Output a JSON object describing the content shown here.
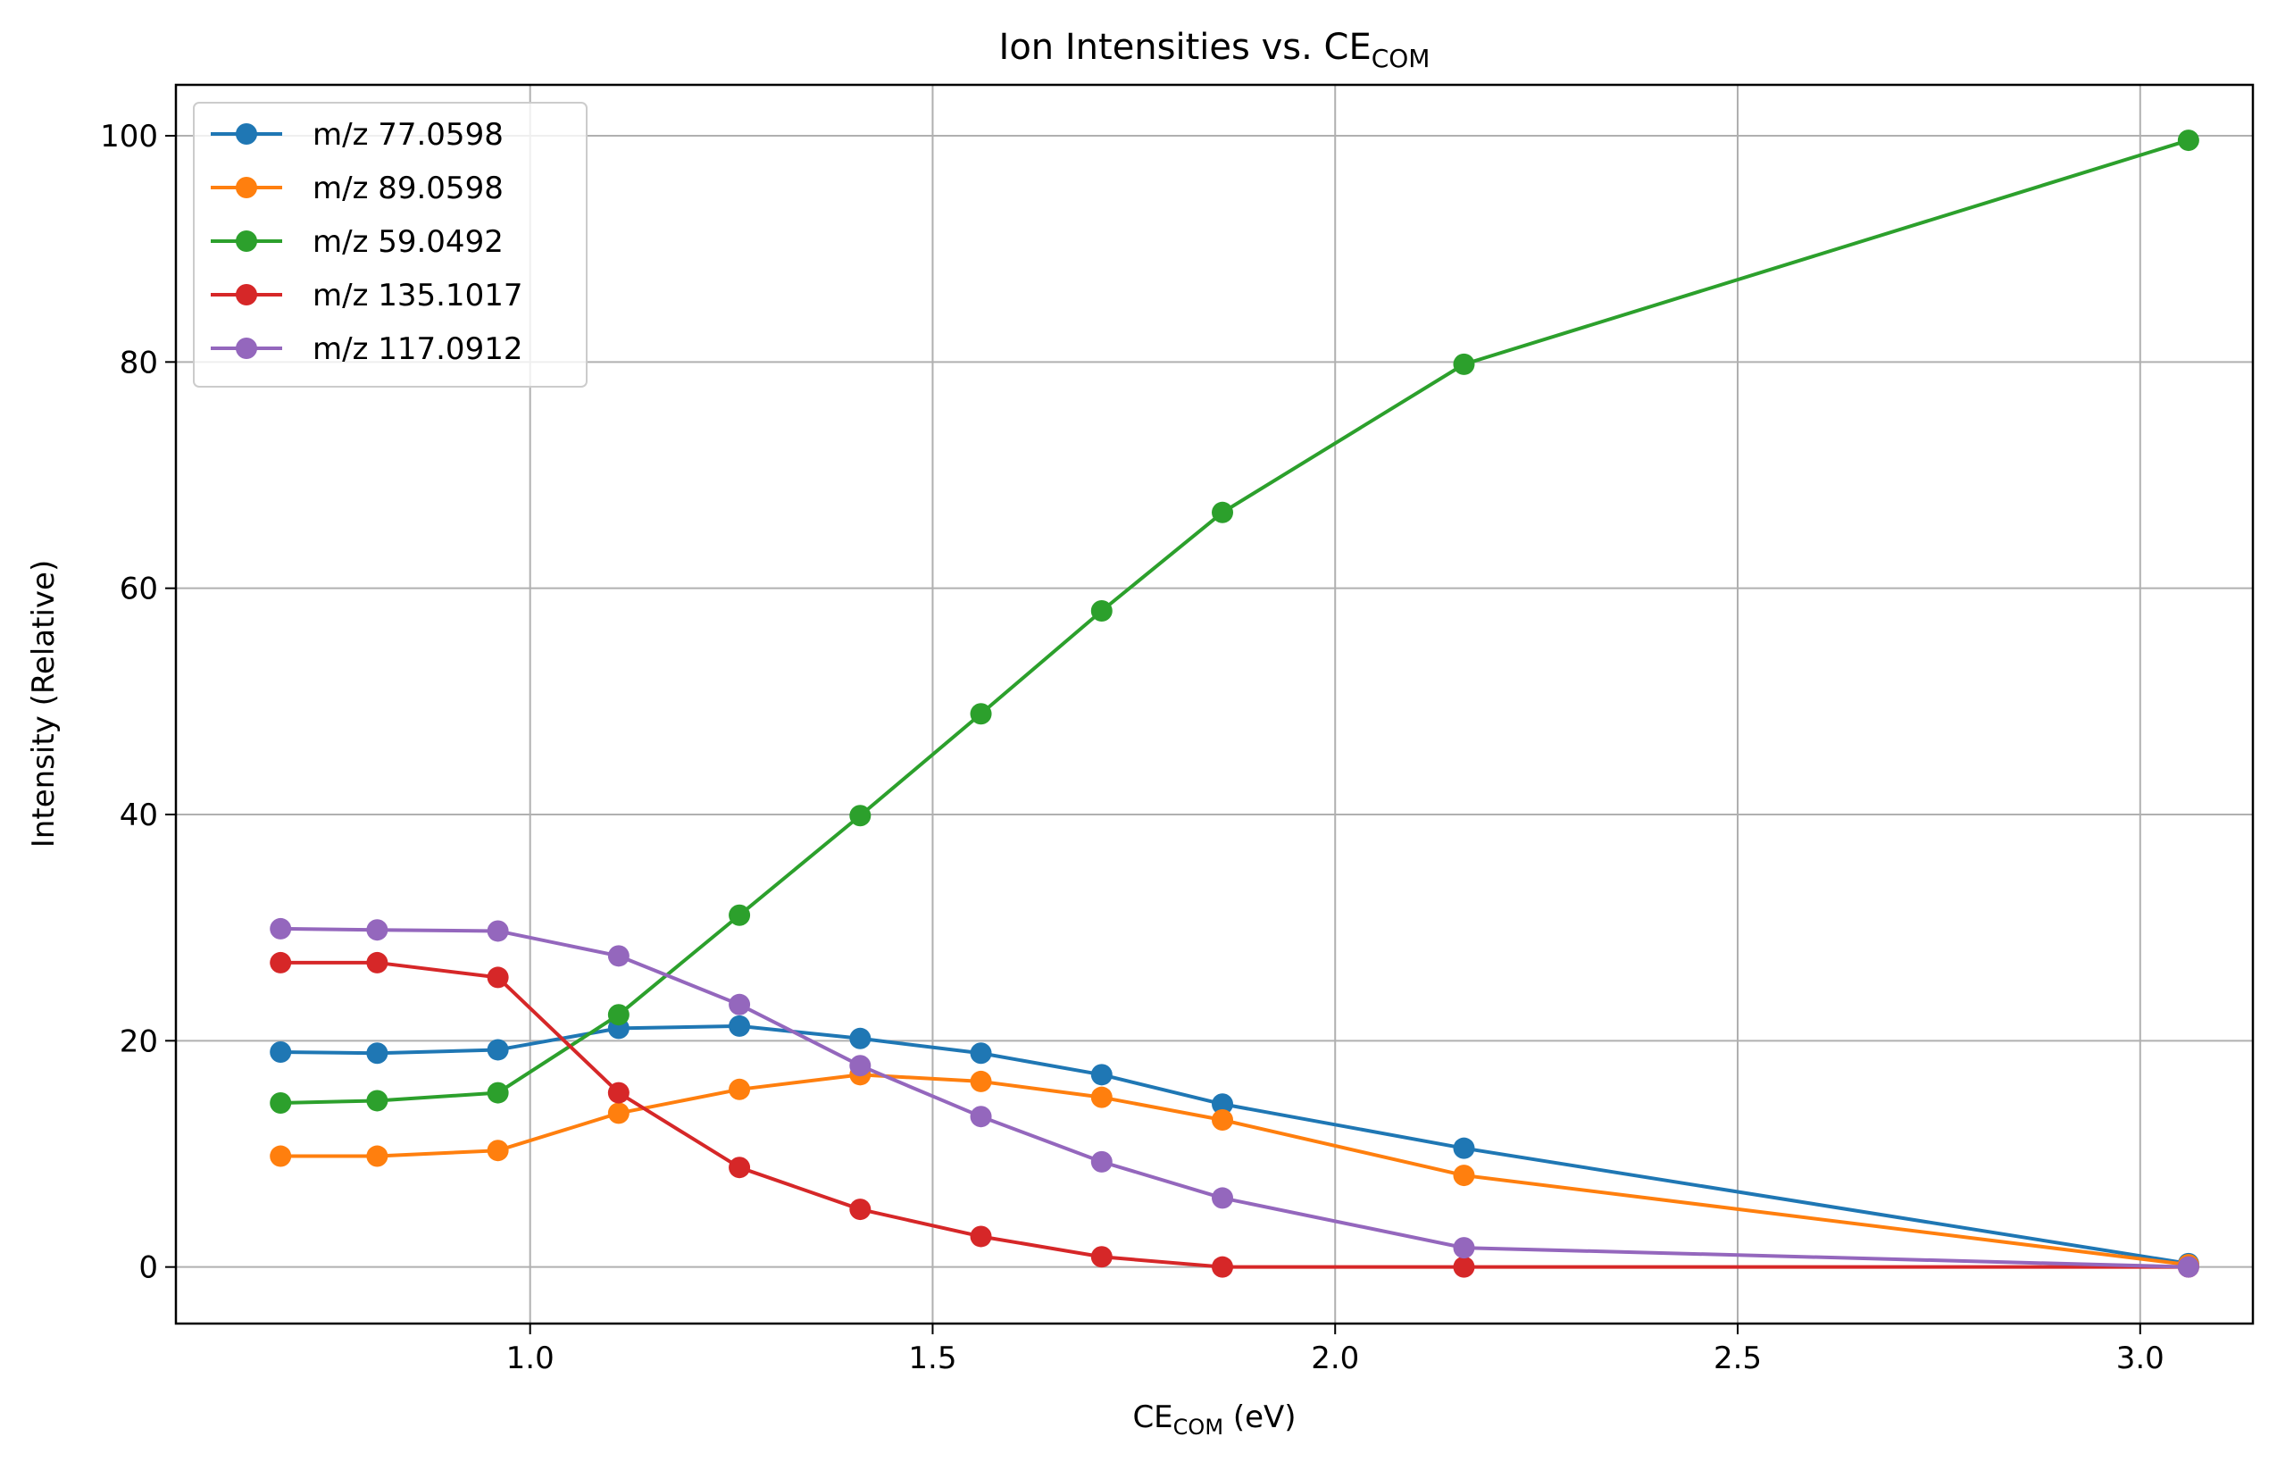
{
  "chart_data": {
    "type": "line",
    "title": "Ion Intensities vs. CE",
    "title_subscript": "COM",
    "xlabel": "CE",
    "xlabel_subscript": "COM",
    "xlabel_suffix": " (eV)",
    "ylabel": "Intensity (Relative)",
    "xlim": [
      0.56,
      3.14
    ],
    "ylim": [
      -5,
      104.5
    ],
    "xticks": [
      1.0,
      1.5,
      2.0,
      2.5,
      3.0
    ],
    "yticks": [
      0,
      20,
      40,
      60,
      80,
      100
    ],
    "grid": true,
    "legend_position": "top-left",
    "x": [
      0.69,
      0.81,
      0.96,
      1.11,
      1.26,
      1.41,
      1.56,
      1.71,
      1.86,
      2.16,
      3.06
    ],
    "series": [
      {
        "name": "m/z 77.0598",
        "color": "#1f77b4",
        "values": [
          19.0,
          18.9,
          19.2,
          21.1,
          21.3,
          20.2,
          18.9,
          17.0,
          14.4,
          10.5,
          0.3
        ]
      },
      {
        "name": "m/z 89.0598",
        "color": "#ff7f0e",
        "values": [
          9.8,
          9.8,
          10.3,
          13.6,
          15.7,
          17.0,
          16.4,
          15.0,
          13.0,
          8.1,
          0.2
        ]
      },
      {
        "name": "m/z 59.0492",
        "color": "#2ca02c",
        "values": [
          14.5,
          14.7,
          15.4,
          22.3,
          31.1,
          39.9,
          48.9,
          58.0,
          66.7,
          79.8,
          99.6
        ]
      },
      {
        "name": "m/z 135.1017",
        "color": "#d62728",
        "values": [
          26.9,
          26.9,
          25.6,
          15.4,
          8.8,
          5.1,
          2.7,
          0.9,
          0.0,
          0.0,
          0.0
        ]
      },
      {
        "name": "m/z 117.0912",
        "color": "#9467bd",
        "values": [
          29.9,
          29.8,
          29.7,
          27.5,
          23.2,
          17.8,
          13.3,
          9.3,
          6.1,
          1.7,
          0.0
        ]
      }
    ]
  }
}
